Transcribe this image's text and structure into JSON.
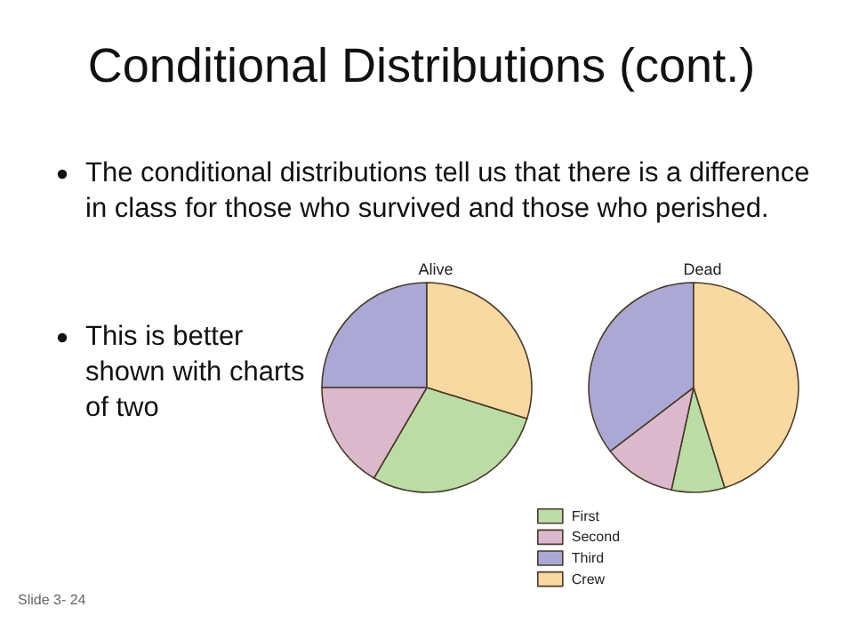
{
  "chart_data": {
    "type": "pie",
    "title": "Conditional Distributions (cont.)",
    "annotations": [
      "The conditional distributions tell us that there is a difference in class for those who survived and those who perished.",
      "This is better shown with charts of two",
      "Slide 3- 24"
    ],
    "categories": [
      "First",
      "Second",
      "Third",
      "Crew"
    ],
    "colors": [
      "#bcdca6",
      "#dbb8cc",
      "#aca8d5",
      "#f9d9a2"
    ],
    "series": [
      {
        "name": "Alive",
        "values": [
          28.6,
          16.6,
          25.0,
          29.8
        ]
      },
      {
        "name": "Dead",
        "values": [
          8.2,
          11.2,
          35.4,
          45.2
        ]
      }
    ],
    "legend": "bottom"
  }
}
